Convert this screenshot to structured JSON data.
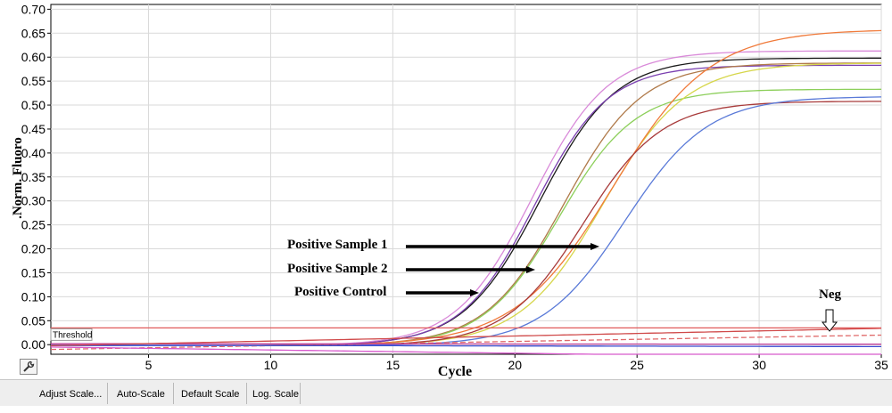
{
  "colors": {
    "threshold": "#e05a5a",
    "grid": "#d9d9d9",
    "axis": "#000000",
    "arrow": "#000000"
  },
  "toolbar": {
    "buttons": [
      "Adjust Scale...",
      "Auto-Scale",
      "Default Scale",
      "Log. Scale"
    ],
    "icon": "wrench-icon"
  },
  "annotations": {
    "pos_sample_1": "Positive Sample 1",
    "pos_sample_2": "Positive Sample 2",
    "pos_control": "Positive Control",
    "neg": "Neg"
  },
  "chart_data": {
    "type": "line",
    "xlabel": "Cycle",
    "ylabel": ".Norm. Fluoro",
    "xlim": [
      1,
      35
    ],
    "ylim": [
      -0.02,
      0.71
    ],
    "xticks": [
      "5",
      "10",
      "15",
      "20",
      "25",
      "30",
      "35"
    ],
    "yticks": [
      "0.00",
      "0.05",
      "0.10",
      "0.15",
      "0.20",
      "0.25",
      "0.30",
      "0.35",
      "0.40",
      "0.45",
      "0.50",
      "0.55",
      "0.60",
      "0.65",
      "0.70"
    ],
    "grid": true,
    "threshold": {
      "label": "Threshold",
      "value": 0.035
    },
    "series": [
      {
        "color": "#1a1a1a",
        "plateau": 0.6,
        "mid": 21.0,
        "slope": 1.55,
        "kind": "sigmoid"
      },
      {
        "color": "#d98ad9",
        "plateau": 0.615,
        "mid": 20.7,
        "slope": 1.55,
        "kind": "sigmoid"
      },
      {
        "color": "#7a3fb0",
        "plateau": 0.585,
        "mid": 20.8,
        "slope": 1.5,
        "kind": "sigmoid"
      },
      {
        "color": "#b07a4a",
        "plateau": 0.59,
        "mid": 22.0,
        "slope": 1.6,
        "kind": "sigmoid"
      },
      {
        "color": "#8ccf5a",
        "plateau": 0.535,
        "mid": 21.8,
        "slope": 1.55,
        "kind": "sigmoid"
      },
      {
        "color": "#d6d64a",
        "plateau": 0.59,
        "mid": 23.6,
        "slope": 1.7,
        "kind": "sigmoid"
      },
      {
        "color": "#f07a3a",
        "plateau": 0.66,
        "mid": 24.0,
        "slope": 2.0,
        "kind": "sigmoid"
      },
      {
        "color": "#a83a3a",
        "plateau": 0.51,
        "mid": 22.8,
        "slope": 1.6,
        "kind": "sigmoid"
      },
      {
        "color": "#5a7ad8",
        "plateau": 0.52,
        "mid": 24.5,
        "slope": 1.7,
        "kind": "sigmoid"
      },
      {
        "color": "#e06a6a",
        "kind": "linear",
        "y0": -0.01,
        "y1": 0.02,
        "dashed": true
      },
      {
        "color": "#c0409a",
        "kind": "linear",
        "y0": 0.002,
        "y1": 0.001,
        "dashed": false
      },
      {
        "color": "#3a4ad0",
        "kind": "linear",
        "y0": -0.001,
        "y1": -0.004,
        "dashed": false
      },
      {
        "color": "#d85acc",
        "kind": "linear",
        "y0": -0.005,
        "y1": -0.028,
        "dashed": false
      },
      {
        "color": "#d04a4a",
        "kind": "linear",
        "y0": -0.002,
        "y1": 0.034,
        "dashed": false
      }
    ]
  }
}
